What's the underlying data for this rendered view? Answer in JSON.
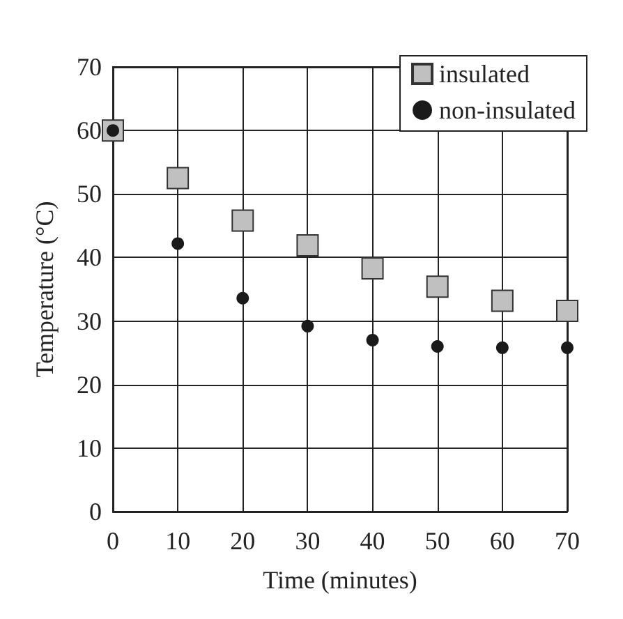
{
  "chart_data": {
    "type": "scatter",
    "xlabel": "Time (minutes)",
    "ylabel": "Temperature (°C)",
    "x": [
      0,
      10,
      20,
      30,
      40,
      50,
      60,
      70
    ],
    "series": [
      {
        "name": "insulated",
        "color": "#c0c0c0",
        "marker": "square",
        "values": [
          60,
          52.5,
          45.8,
          41.9,
          38.3,
          35.4,
          33.2,
          31.6
        ]
      },
      {
        "name": "non-insulated",
        "color": "#1a1a1a",
        "marker": "circle",
        "values": [
          60,
          42.2,
          33.6,
          29.2,
          27.0,
          26.0,
          25.8,
          25.8
        ]
      }
    ],
    "xlim": [
      0,
      70
    ],
    "xticks": [
      0,
      10,
      20,
      30,
      40,
      50,
      60,
      70
    ],
    "ylim": [
      0,
      70
    ],
    "yticks": [
      0,
      10,
      20,
      30,
      40,
      50,
      60,
      70
    ],
    "grid": true,
    "legend": "top right"
  }
}
